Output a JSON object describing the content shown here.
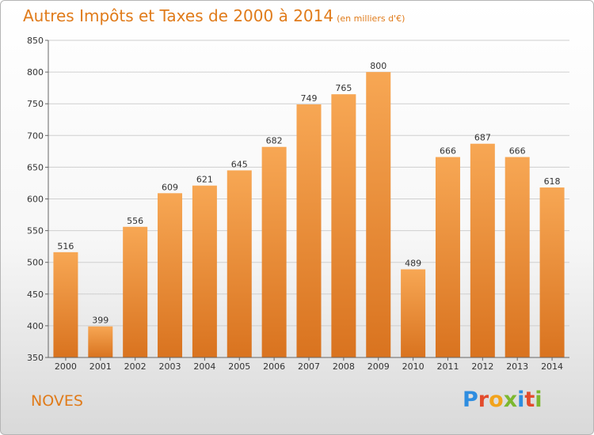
{
  "header": {
    "title": "Autres Impôts et Taxes de 2000 à 2014",
    "subtitle": "(en milliers d'€)"
  },
  "footer": {
    "place": "NOVES",
    "brand": "Proxiti",
    "brand_colors": [
      "#2e8de0",
      "#e34b2c",
      "#f2a31b",
      "#7cb82f",
      "#2e8de0",
      "#e34b2c",
      "#7cb82f"
    ]
  },
  "chart_data": {
    "type": "bar",
    "categories": [
      "2000",
      "2001",
      "2002",
      "2003",
      "2004",
      "2005",
      "2006",
      "2007",
      "2008",
      "2009",
      "2010",
      "2011",
      "2012",
      "2013",
      "2014"
    ],
    "values": [
      516,
      399,
      556,
      609,
      621,
      645,
      682,
      749,
      765,
      800,
      489,
      666,
      687,
      666,
      618
    ],
    "ylim": [
      350,
      850
    ],
    "yticks": [
      350,
      400,
      450,
      500,
      550,
      600,
      650,
      700,
      750,
      800,
      850
    ],
    "grid": true,
    "bar_color_top": "#f7a754",
    "bar_color_bottom": "#d9731f"
  }
}
